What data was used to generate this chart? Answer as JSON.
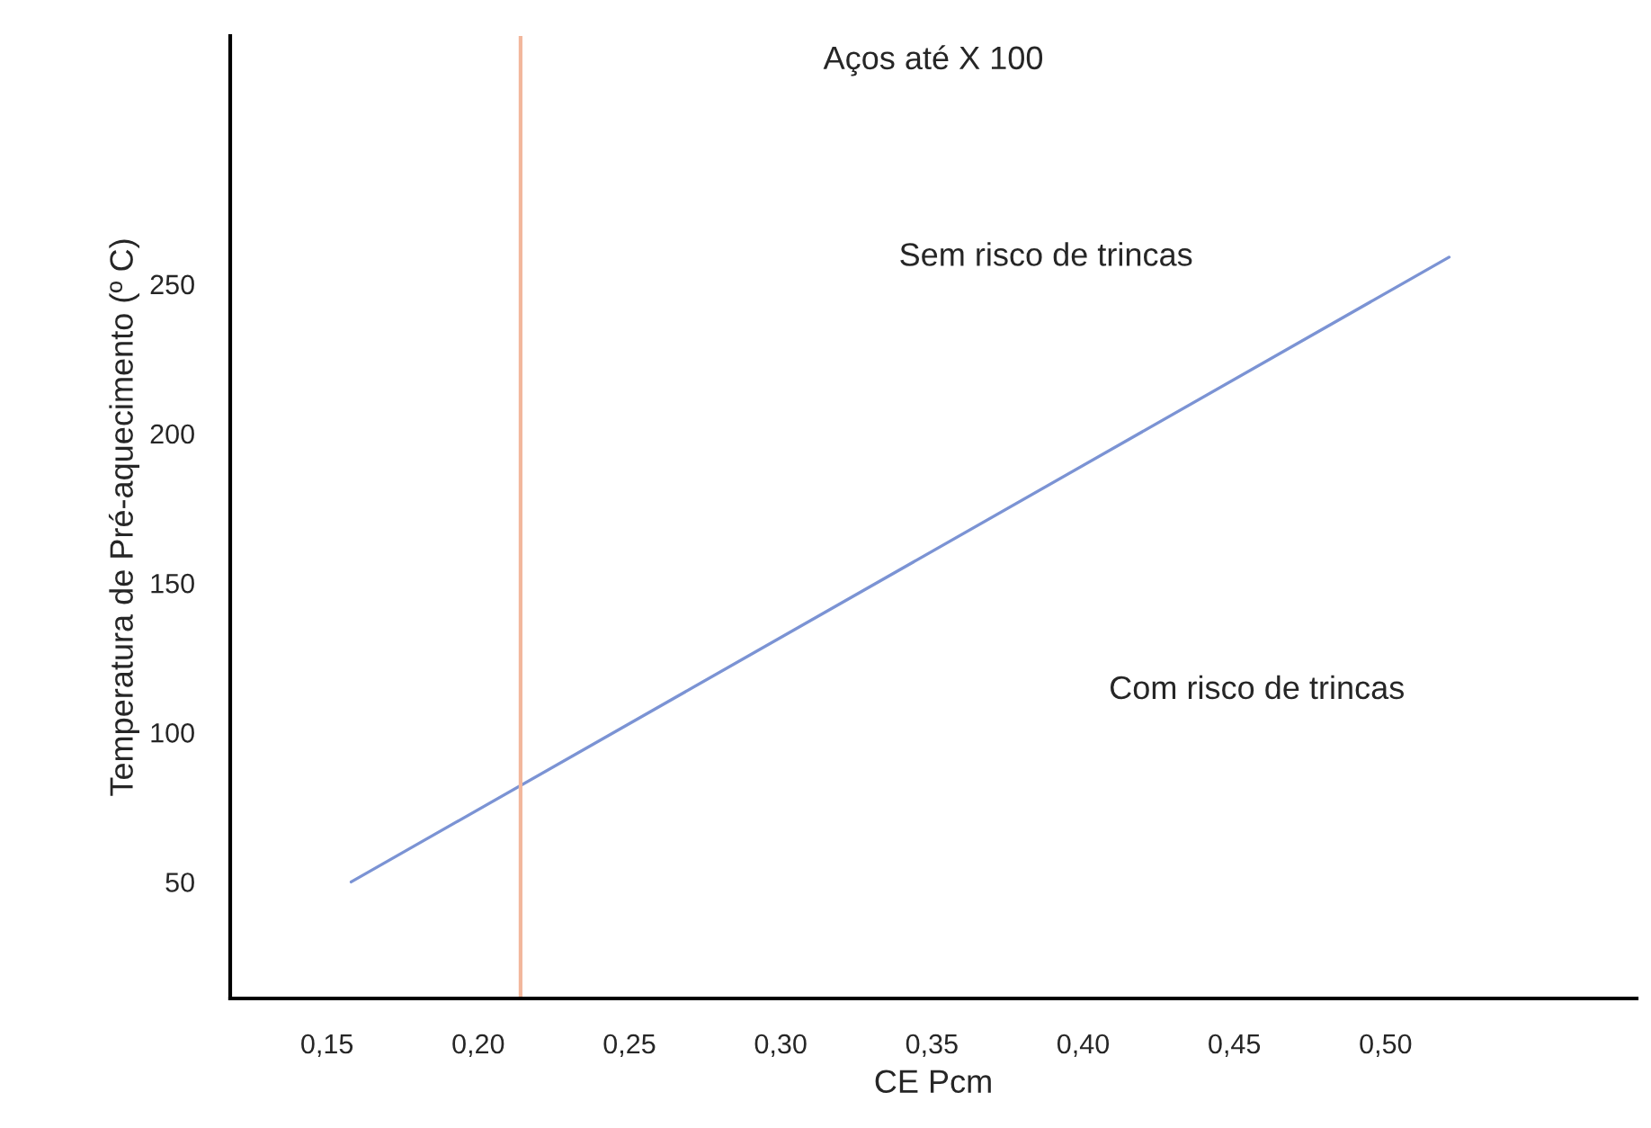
{
  "chart_data": {
    "type": "line",
    "title": "Aços até X 100",
    "xlabel": "CE Pcm",
    "ylabel": "Temperatura de Pré-aquecimento (º C)",
    "x": [
      0.158,
      0.521
    ],
    "series": [
      {
        "color": "#7b93d4",
        "values": [
          50,
          259
        ]
      }
    ],
    "xlim": [
      0.118,
      0.583
    ],
    "ylim": [
      11,
      333
    ],
    "xticks": [
      {
        "value": 0.15,
        "label": "0,15"
      },
      {
        "value": 0.2,
        "label": "0,20"
      },
      {
        "value": 0.25,
        "label": "0,25"
      },
      {
        "value": 0.3,
        "label": "0,30"
      },
      {
        "value": 0.35,
        "label": "0,35"
      },
      {
        "value": 0.4,
        "label": "0,40"
      },
      {
        "value": 0.45,
        "label": "0,45"
      },
      {
        "value": 0.5,
        "label": "0,50"
      }
    ],
    "yticks": [
      50,
      100,
      150,
      200,
      250
    ],
    "ref_lines": [
      {
        "axis": "x",
        "value": 0.214,
        "color": "#f2b79c"
      }
    ],
    "annotations": [
      "Sem risco de trincas",
      "Com risco de trincas"
    ],
    "grid": false,
    "legend": false
  }
}
